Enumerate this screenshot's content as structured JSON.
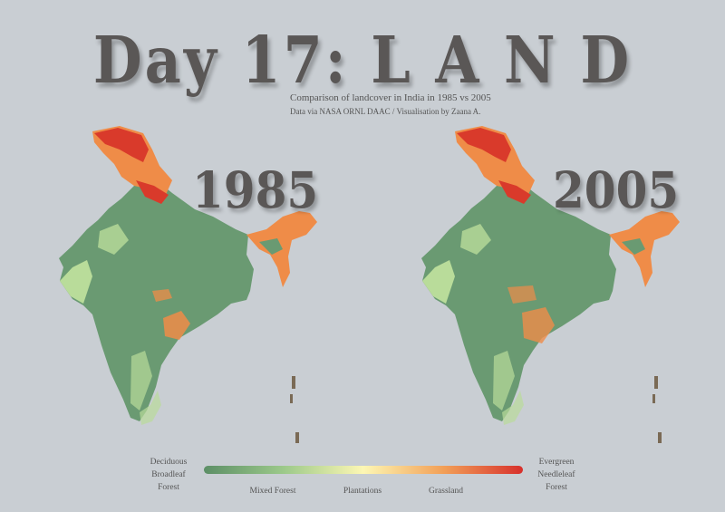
{
  "title": "Day 17: L A N D",
  "subtitle": "Comparison of landcover in India in 1985 vs 2005",
  "credit": "Data via NASA ORNL DAAC / Visualisation by Zaana A.",
  "maps": [
    {
      "year": "1985"
    },
    {
      "year": "2005"
    }
  ],
  "legend": {
    "left_label": "Deciduous\nBroadleaf\nForest",
    "right_label": "Evergreen\nNeedleleaf\nForest",
    "middle_labels": [
      "Mixed Forest",
      "Plantations",
      "Grassland"
    ],
    "gradient_colors": [
      "#5c8f66",
      "#9cc98a",
      "#fdf7b4",
      "#f2a057",
      "#d7302c"
    ]
  },
  "colors": {
    "background": "#c9ced3",
    "forest_green": "#6a9a72",
    "light_green": "#b9dc9a",
    "orange": "#ef8c48",
    "red": "#d93a2b",
    "title_gray": "#5a5756"
  }
}
